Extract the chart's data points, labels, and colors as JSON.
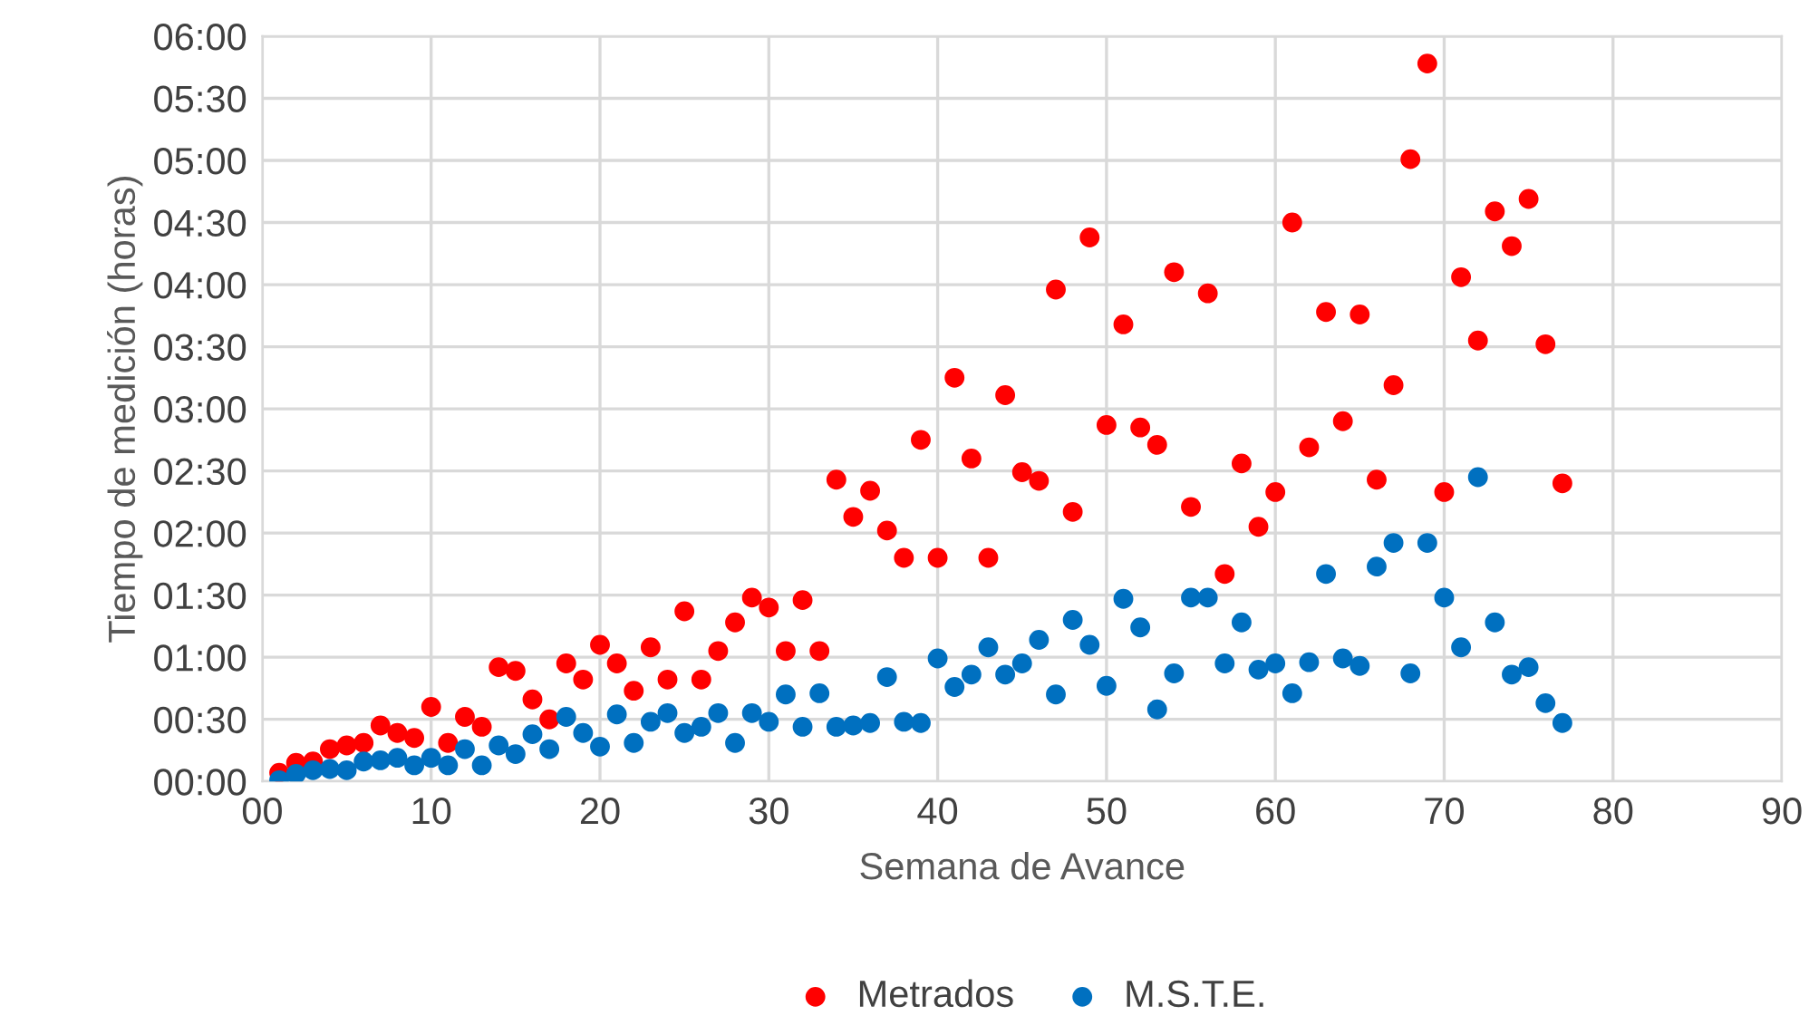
{
  "chart_data": {
    "type": "scatter",
    "xlabel": "Semana de Avance",
    "ylabel": "Tiempo de medición (horas)",
    "xlim": [
      0,
      90
    ],
    "xticks": [
      {
        "value": 0,
        "label": "00"
      },
      10,
      20,
      30,
      40,
      50,
      60,
      70,
      80,
      90
    ],
    "ylim": [
      0,
      6
    ],
    "yticks": [
      {
        "value": 0,
        "label": "00:00"
      },
      {
        "value": 0.5,
        "label": "00:30"
      },
      {
        "value": 1,
        "label": "01:00"
      },
      {
        "value": 1.5,
        "label": "01:30"
      },
      {
        "value": 2,
        "label": "02:00"
      },
      {
        "value": 2.5,
        "label": "02:30"
      },
      {
        "value": 3,
        "label": "03:00"
      },
      {
        "value": 3.5,
        "label": "03:30"
      },
      {
        "value": 4,
        "label": "04:00"
      },
      {
        "value": 4.5,
        "label": "04:30"
      },
      {
        "value": 5,
        "label": "05:00"
      },
      {
        "value": 5.5,
        "label": "05:30"
      },
      {
        "value": 6,
        "label": "06:00"
      }
    ],
    "grid": true,
    "legend": "bottom",
    "marker": "circle",
    "x": [
      1,
      2,
      3,
      4,
      5,
      6,
      7,
      8,
      9,
      10,
      11,
      12,
      13,
      14,
      15,
      16,
      17,
      18,
      19,
      20,
      21,
      22,
      23,
      24,
      25,
      26,
      27,
      28,
      29,
      30,
      31,
      32,
      33,
      34,
      35,
      36,
      37,
      38,
      39,
      40,
      41,
      42,
      43,
      44,
      45,
      46,
      47,
      48,
      49,
      50,
      51,
      52,
      53,
      54,
      55,
      56,
      57,
      58,
      59,
      60,
      61,
      62,
      63,
      64,
      65,
      66,
      67,
      68,
      69,
      70,
      71,
      72,
      73,
      74,
      75,
      76,
      77
    ],
    "series": [
      {
        "name": "Metrados",
        "color": "#ff0000",
        "values": [
          0.07,
          0.15,
          0.16,
          0.26,
          0.29,
          0.31,
          0.45,
          0.39,
          0.35,
          0.6,
          0.31,
          0.52,
          0.44,
          0.92,
          0.89,
          0.66,
          0.5,
          0.95,
          0.82,
          1.1,
          0.95,
          0.73,
          1.08,
          0.82,
          1.37,
          0.82,
          1.05,
          1.28,
          1.48,
          1.4,
          1.05,
          1.46,
          1.05,
          2.43,
          2.13,
          2.34,
          2.02,
          1.8,
          2.75,
          1.8,
          3.25,
          2.6,
          1.8,
          3.11,
          2.49,
          2.42,
          3.96,
          2.17,
          4.38,
          2.87,
          3.68,
          2.85,
          2.71,
          4.1,
          2.21,
          3.93,
          1.67,
          2.56,
          2.05,
          2.33,
          4.5,
          2.69,
          3.78,
          2.9,
          3.76,
          2.43,
          3.19,
          5.01,
          5.78,
          2.33,
          4.06,
          3.55,
          4.59,
          4.31,
          4.69,
          3.52,
          2.4
        ]
      },
      {
        "name": "M.S.T.E.",
        "color": "#0070c0",
        "values": [
          0.01,
          0.06,
          0.09,
          0.1,
          0.09,
          0.16,
          0.17,
          0.19,
          0.13,
          0.19,
          0.13,
          0.26,
          0.13,
          0.29,
          0.22,
          0.38,
          0.26,
          0.52,
          0.39,
          0.28,
          0.54,
          0.31,
          0.48,
          0.55,
          0.39,
          0.44,
          0.55,
          0.31,
          0.55,
          0.48,
          0.7,
          0.44,
          0.71,
          0.44,
          0.45,
          0.47,
          0.84,
          0.48,
          0.47,
          0.99,
          0.76,
          0.86,
          1.08,
          0.86,
          0.95,
          1.14,
          0.7,
          1.3,
          1.1,
          0.77,
          1.47,
          1.24,
          0.58,
          0.87,
          1.48,
          1.48,
          0.95,
          1.28,
          0.9,
          0.95,
          0.71,
          0.96,
          1.67,
          0.99,
          0.93,
          1.73,
          1.92,
          0.87,
          1.92,
          1.48,
          1.08,
          2.45,
          1.28,
          0.86,
          0.92,
          0.63,
          0.47
        ]
      }
    ]
  }
}
